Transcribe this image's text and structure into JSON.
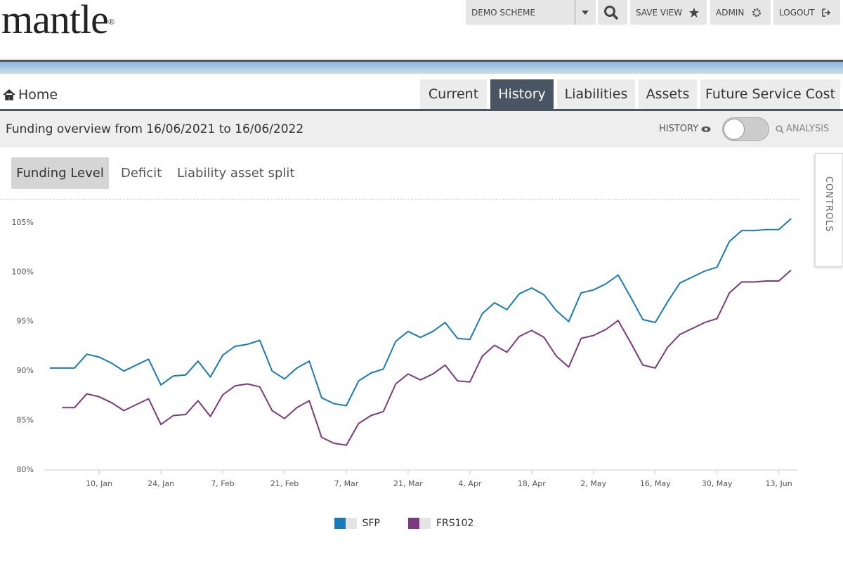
{
  "header": {
    "logo": "mantle",
    "logo_mark": "®",
    "scheme": "DEMO SCHEME",
    "save_view": "SAVE VIEW",
    "admin": "ADMIN",
    "logout": "LOGOUT"
  },
  "breadcrumb": "Home",
  "tabs": [
    "Current",
    "History",
    "Liabilities",
    "Assets",
    "Future Service Cost"
  ],
  "overview": "Funding overview from 16/06/2021 to 16/06/2022",
  "toggle": {
    "left": "HISTORY",
    "right": "ANALYSIS"
  },
  "subtabs": [
    "Funding Level",
    "Deficit",
    "Liability asset split"
  ],
  "controls": "CONTROLS",
  "chart_data": {
    "type": "line",
    "categories": [
      null,
      null,
      null,
      null,
      "10, Jan",
      null,
      null,
      null,
      null,
      "24, Jan",
      null,
      null,
      null,
      null,
      "7, Feb",
      null,
      null,
      null,
      null,
      "21, Feb",
      null,
      null,
      null,
      null,
      "7, Mar",
      null,
      null,
      null,
      null,
      "21, Mar",
      null,
      null,
      null,
      null,
      "4, Apr",
      null,
      null,
      null,
      null,
      "18, Apr",
      null,
      null,
      null,
      null,
      "2, May",
      null,
      null,
      null,
      null,
      "16, May",
      null,
      null,
      null,
      null,
      "30, May",
      null,
      null,
      null,
      null,
      "13, Jun",
      null
    ],
    "series": [
      {
        "name": "SFP",
        "color": "#1a7ab8",
        "values": [
          90.3,
          90.3,
          90.3,
          91.7,
          91.4,
          90.8,
          90.0,
          90.6,
          91.2,
          88.6,
          89.5,
          89.6,
          91.0,
          89.4,
          91.6,
          92.5,
          92.7,
          93.1,
          90.0,
          89.2,
          90.3,
          91.0,
          87.3,
          86.7,
          86.5,
          89.0,
          89.8,
          90.2,
          93.0,
          94.0,
          93.4,
          94.0,
          94.9,
          93.3,
          93.2,
          95.8,
          96.9,
          96.2,
          97.8,
          98.4,
          97.7,
          96.1,
          95.0,
          97.9,
          98.2,
          98.8,
          99.7,
          97.5,
          95.2,
          94.9,
          97.0,
          98.9,
          99.5,
          100.1,
          100.5,
          103.1,
          104.2,
          104.2,
          104.3,
          104.3,
          105.4
        ]
      },
      {
        "name": "FRS102",
        "color": "#7b3a7e",
        "values": [
          null,
          86.3,
          86.3,
          87.7,
          87.4,
          86.8,
          86.0,
          86.6,
          87.2,
          84.6,
          85.5,
          85.6,
          87.0,
          85.4,
          87.6,
          88.5,
          88.7,
          88.4,
          86.0,
          85.2,
          86.3,
          87.0,
          83.3,
          82.7,
          82.5,
          84.7,
          85.5,
          85.9,
          88.7,
          89.7,
          89.1,
          89.7,
          90.6,
          89.0,
          88.9,
          91.5,
          92.6,
          91.9,
          93.5,
          94.1,
          93.4,
          91.5,
          90.4,
          93.3,
          93.6,
          94.2,
          95.1,
          92.9,
          90.6,
          90.3,
          92.4,
          93.7,
          94.3,
          94.9,
          95.3,
          97.9,
          99.0,
          99.0,
          99.1,
          99.1,
          100.2
        ]
      }
    ],
    "ylim": [
      80,
      106.2
    ],
    "yticks": [
      {
        "value": 80,
        "label": "80%"
      },
      {
        "value": 85,
        "label": "85%"
      },
      {
        "value": 90,
        "label": "90%"
      },
      {
        "value": 95,
        "label": "95%"
      },
      {
        "value": 100,
        "label": "100%"
      },
      {
        "value": 105,
        "label": "105%"
      }
    ],
    "legend": "bottom"
  }
}
